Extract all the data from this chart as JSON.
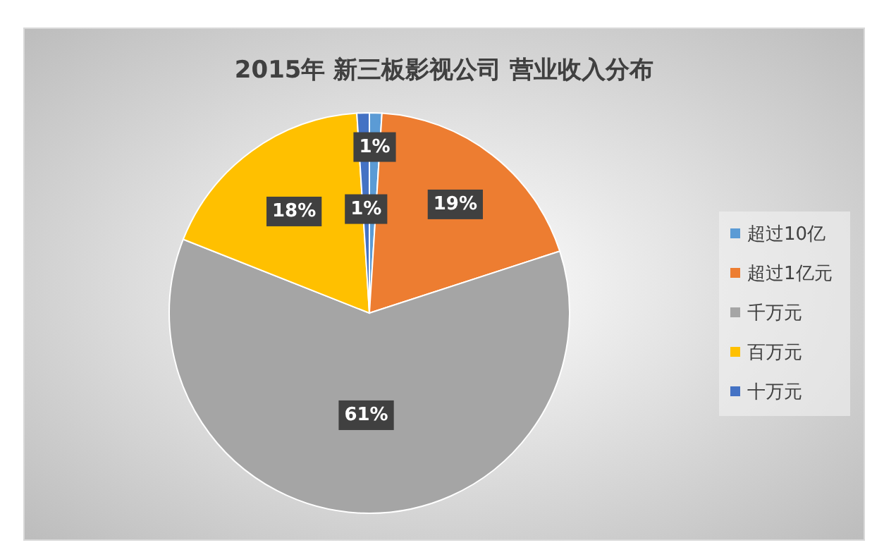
{
  "chart_data": {
    "type": "pie",
    "title": "2015年 新三板影视公司  营业收入分布",
    "categories": [
      "超过10亿",
      "超过1亿元",
      "千万元",
      "百万元",
      "十万元"
    ],
    "values": [
      1,
      19,
      61,
      18,
      1
    ],
    "value_labels": [
      "1%",
      "19%",
      "61%",
      "18%",
      "1%"
    ],
    "colors": [
      "#5b9bd5",
      "#ed7d31",
      "#a5a5a5",
      "#ffc000",
      "#4472c4"
    ],
    "legend": "right"
  }
}
